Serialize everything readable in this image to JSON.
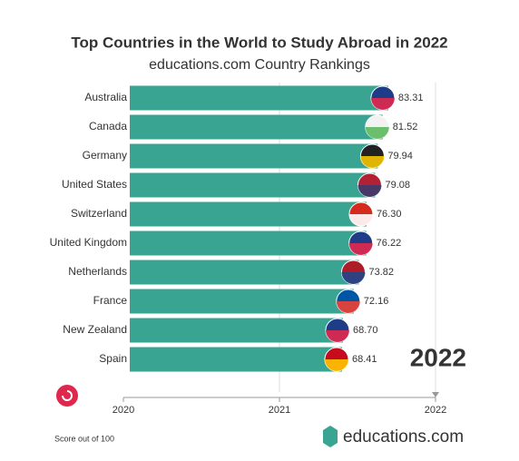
{
  "chart_data": {
    "type": "bar",
    "orientation": "horizontal",
    "title": "Top Countries in the World to Study Abroad in 2022",
    "subtitle": "educations.com Country Rankings",
    "categories": [
      "Australia",
      "Canada",
      "Germany",
      "United States",
      "Switzerland",
      "United Kingdom",
      "Netherlands",
      "France",
      "New Zealand",
      "Spain"
    ],
    "values": [
      83.31,
      81.52,
      79.94,
      79.08,
      76.3,
      76.22,
      73.82,
      72.16,
      68.7,
      68.41
    ],
    "value_labels": [
      "83.31",
      "81.52",
      "79.94",
      "79.08",
      "76.30",
      "76.22",
      "73.82",
      "72.16",
      "68.70",
      "68.41"
    ],
    "color": "#3aa493",
    "xlim": [
      0,
      100
    ],
    "current_year": 2022,
    "timeline_ticks": [
      2020,
      2021,
      2022
    ],
    "footnote": "Score out of 100",
    "logo": "educations.com"
  }
}
